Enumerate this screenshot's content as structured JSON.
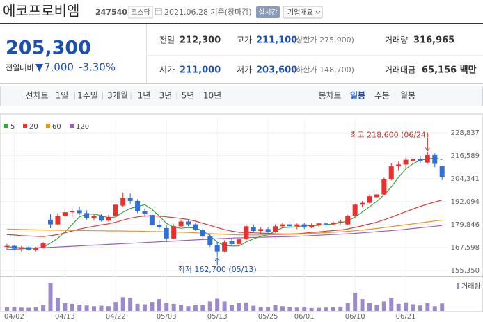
{
  "header": {
    "name": "에코프로비엠",
    "code": "247540",
    "market": "코스닥",
    "date": "2021.06.28 기준(장마감)",
    "realtime": "실시간",
    "overview": "기업개요"
  },
  "quote": {
    "price": "205,300",
    "change_label": "전일대비",
    "change": "7,000",
    "change_rate": "-3.30%",
    "prev": {
      "label": "전일",
      "value": "212,300"
    },
    "high": {
      "label": "고가",
      "value": "211,100",
      "note": "(상한가 275,900)"
    },
    "volume": {
      "label": "거래량",
      "value": "316,965"
    },
    "open": {
      "label": "시가",
      "value": "211,000"
    },
    "low": {
      "label": "저가",
      "value": "203,600",
      "note": "(하한가 148,700)"
    },
    "amount": {
      "label": "거래대금",
      "value": "65,156 백만"
    }
  },
  "tabs": {
    "line": [
      "선차트",
      "1일",
      "1주일",
      "3개월",
      "1년",
      "3년",
      "5년",
      "10년"
    ],
    "candle": [
      "봉차트",
      "일봉",
      "주봉",
      "월봉"
    ],
    "active": "일봉"
  },
  "chart_data": {
    "type": "candlestick",
    "up_color": "#e8312f",
    "down_color": "#2f6fdc",
    "grid": true,
    "categories": [
      null,
      "04/02",
      null,
      null,
      null,
      null,
      null,
      null,
      "04/13",
      null,
      null,
      null,
      null,
      null,
      null,
      "04/22",
      null,
      null,
      null,
      null,
      null,
      null,
      "05/03",
      null,
      null,
      null,
      null,
      null,
      null,
      "05/13",
      null,
      null,
      null,
      null,
      null,
      null,
      "05/25",
      null,
      null,
      null,
      null,
      "06/01",
      null,
      null,
      null,
      null,
      null,
      null,
      "06/10",
      null,
      null,
      null,
      null,
      null,
      null,
      "06/21",
      null,
      null,
      null,
      null,
      null
    ],
    "ylim": [
      155350,
      228837
    ],
    "yticks": [
      {
        "value": 155350,
        "label": "155,350"
      },
      {
        "value": 167598,
        "label": "167,598"
      },
      {
        "value": 179846,
        "label": "179,846"
      },
      {
        "value": 192094,
        "label": "192,094"
      },
      {
        "value": 204341,
        "label": "204,341"
      },
      {
        "value": 216589,
        "label": "216,589"
      },
      {
        "value": 228837,
        "label": "228,837"
      }
    ],
    "ohlc": {
      "open": [
        168000,
        168500,
        167000,
        167800,
        166500,
        167500,
        182500,
        180000,
        184500,
        186500,
        187500,
        186000,
        183500,
        184500,
        182000,
        184500,
        190000,
        194000,
        192500,
        187000,
        185000,
        179500,
        178000,
        172500,
        179000,
        181500,
        180000,
        177000,
        173500,
        169000,
        165500,
        171000,
        169500,
        172000,
        178500,
        176500,
        177500,
        176000,
        179000,
        180000,
        179000,
        180000,
        178500,
        179500,
        180500,
        180000,
        181000,
        180000,
        184500,
        190500,
        191500,
        194500,
        196000,
        204000,
        211000,
        212000,
        214000,
        215000,
        213000,
        217000,
        211000
      ],
      "high": [
        169500,
        169000,
        168500,
        168500,
        168000,
        170500,
        185500,
        186000,
        189000,
        188500,
        189500,
        187500,
        185500,
        185500,
        185000,
        191000,
        197000,
        196500,
        193500,
        188500,
        186000,
        182000,
        179500,
        180000,
        182500,
        182500,
        181000,
        178000,
        175000,
        170500,
        171500,
        172500,
        172500,
        180000,
        180000,
        178500,
        178500,
        180000,
        181000,
        181500,
        180500,
        181000,
        180500,
        181000,
        181500,
        181500,
        182500,
        185000,
        191000,
        192500,
        196000,
        197000,
        205000,
        212500,
        213500,
        215500,
        216000,
        216500,
        218600,
        218000,
        211100
      ],
      "low": [
        166500,
        166000,
        165500,
        165800,
        165500,
        167000,
        178000,
        179500,
        183500,
        184000,
        185000,
        182500,
        182000,
        181500,
        181500,
        184000,
        189500,
        191000,
        186000,
        184000,
        178500,
        177500,
        170500,
        172000,
        178500,
        179000,
        176500,
        172500,
        168000,
        162700,
        165000,
        168500,
        169000,
        171500,
        175500,
        175000,
        175500,
        175500,
        178000,
        178500,
        177500,
        177500,
        178000,
        178500,
        179000,
        179500,
        180000,
        179500,
        184000,
        189000,
        191000,
        193500,
        195500,
        203500,
        208500,
        210000,
        211500,
        212500,
        212500,
        210500,
        203600
      ],
      "close": [
        168500,
        167000,
        167800,
        166500,
        167500,
        170000,
        180000,
        184500,
        186500,
        187000,
        186000,
        183500,
        184500,
        182000,
        184000,
        190500,
        194000,
        192500,
        187000,
        185500,
        179500,
        178500,
        172500,
        179000,
        181500,
        180000,
        177000,
        173500,
        169000,
        165500,
        170500,
        169500,
        172000,
        179000,
        176500,
        177500,
        176000,
        179000,
        180000,
        179000,
        180000,
        178500,
        179500,
        180500,
        180000,
        181000,
        181500,
        184500,
        190500,
        191500,
        195000,
        196000,
        204000,
        211000,
        212000,
        214500,
        215000,
        214000,
        217000,
        212300,
        205300
      ]
    },
    "series": [
      {
        "name": "5",
        "color": "#3aa63a",
        "values": [
          168000,
          167800,
          167500,
          167400,
          167400,
          167700,
          170000,
          172500,
          176000,
          180000,
          184000,
          185500,
          185500,
          184700,
          183500,
          184000,
          186500,
          188500,
          189500,
          190500,
          188000,
          184500,
          180500,
          178500,
          177900,
          178300,
          178000,
          176600,
          174000,
          170500,
          168700,
          168400,
          168500,
          170600,
          172300,
          173600,
          174400,
          176500,
          178200,
          178500,
          178700,
          179400,
          179300,
          179500,
          179800,
          180200,
          180900,
          181800,
          183900,
          186600,
          189400,
          192300,
          195700,
          200000,
          205200,
          209600,
          212400,
          214300,
          214800,
          215600,
          214500
        ]
      },
      {
        "name": "20",
        "color": "#e23b35",
        "values": [
          174500,
          174300,
          174000,
          173800,
          173600,
          173500,
          174000,
          174500,
          175500,
          176500,
          177500,
          178300,
          179000,
          179700,
          180300,
          181200,
          182300,
          183300,
          184000,
          184500,
          184600,
          184400,
          184000,
          183600,
          183200,
          182600,
          181700,
          180600,
          179500,
          178300,
          177200,
          176400,
          175800,
          175600,
          175500,
          175300,
          175200,
          175000,
          174900,
          174900,
          175000,
          175300,
          175700,
          176000,
          176400,
          176700,
          177000,
          177600,
          178400,
          179300,
          180200,
          181200,
          182400,
          183800,
          185300,
          186800,
          188200,
          189600,
          190800,
          191900,
          193000
        ]
      },
      {
        "name": "60",
        "color": "#f0901e",
        "values": [
          177500,
          177400,
          177300,
          177200,
          177100,
          177000,
          176900,
          176900,
          176800,
          176800,
          176700,
          176700,
          176600,
          176600,
          176500,
          176500,
          176500,
          176400,
          176400,
          176300,
          176200,
          176100,
          176000,
          175900,
          175800,
          175700,
          175500,
          175300,
          175100,
          174900,
          174700,
          174500,
          174400,
          174300,
          174300,
          174300,
          174400,
          174500,
          174600,
          174700,
          174800,
          175000,
          175200,
          175400,
          175600,
          175800,
          176000,
          176300,
          176600,
          177000,
          177400,
          177800,
          178300,
          178800,
          179300,
          179800,
          180300,
          180800,
          181300,
          181800,
          182300
        ]
      },
      {
        "name": "120",
        "color": "#9b5fc0",
        "values": [
          166500,
          166700,
          166900,
          167100,
          167300,
          167500,
          167700,
          167900,
          168100,
          168300,
          168500,
          168700,
          168900,
          169100,
          169300,
          169500,
          169700,
          169900,
          170100,
          170300,
          170500,
          170700,
          170900,
          171100,
          171300,
          171500,
          171700,
          171900,
          172100,
          172300,
          172500,
          172700,
          172800,
          172900,
          173000,
          173100,
          173200,
          173300,
          173400,
          173500,
          173600,
          173800,
          174000,
          174200,
          174400,
          174600,
          174800,
          175000,
          175200,
          175500,
          175800,
          176100,
          176400,
          176700,
          177000,
          177400,
          177800,
          178200,
          178600,
          179000,
          179400
        ]
      }
    ],
    "volume": {
      "name": "거래량",
      "color": "#9c8acb",
      "ylim": [
        0,
        1300000
      ],
      "values": [
        150000,
        160000,
        140000,
        130000,
        150000,
        260000,
        1180000,
        560000,
        330000,
        300000,
        260000,
        230000,
        200000,
        220000,
        200000,
        380000,
        580000,
        560000,
        300000,
        280000,
        380000,
        500000,
        350000,
        300000,
        260000,
        200000,
        240000,
        260000,
        400000,
        520000,
        400000,
        240000,
        330000,
        360000,
        220000,
        160000,
        170000,
        250000,
        200000,
        150000,
        140000,
        150000,
        120000,
        130000,
        140000,
        160000,
        180000,
        330000,
        770000,
        500000,
        330000,
        250000,
        400000,
        560000,
        300000,
        360000,
        280000,
        230000,
        330000,
        200000,
        316965
      ]
    },
    "annotations": {
      "high": "최고 218,600 (06/24)",
      "low": "최저 162,700 (05/13)"
    }
  }
}
